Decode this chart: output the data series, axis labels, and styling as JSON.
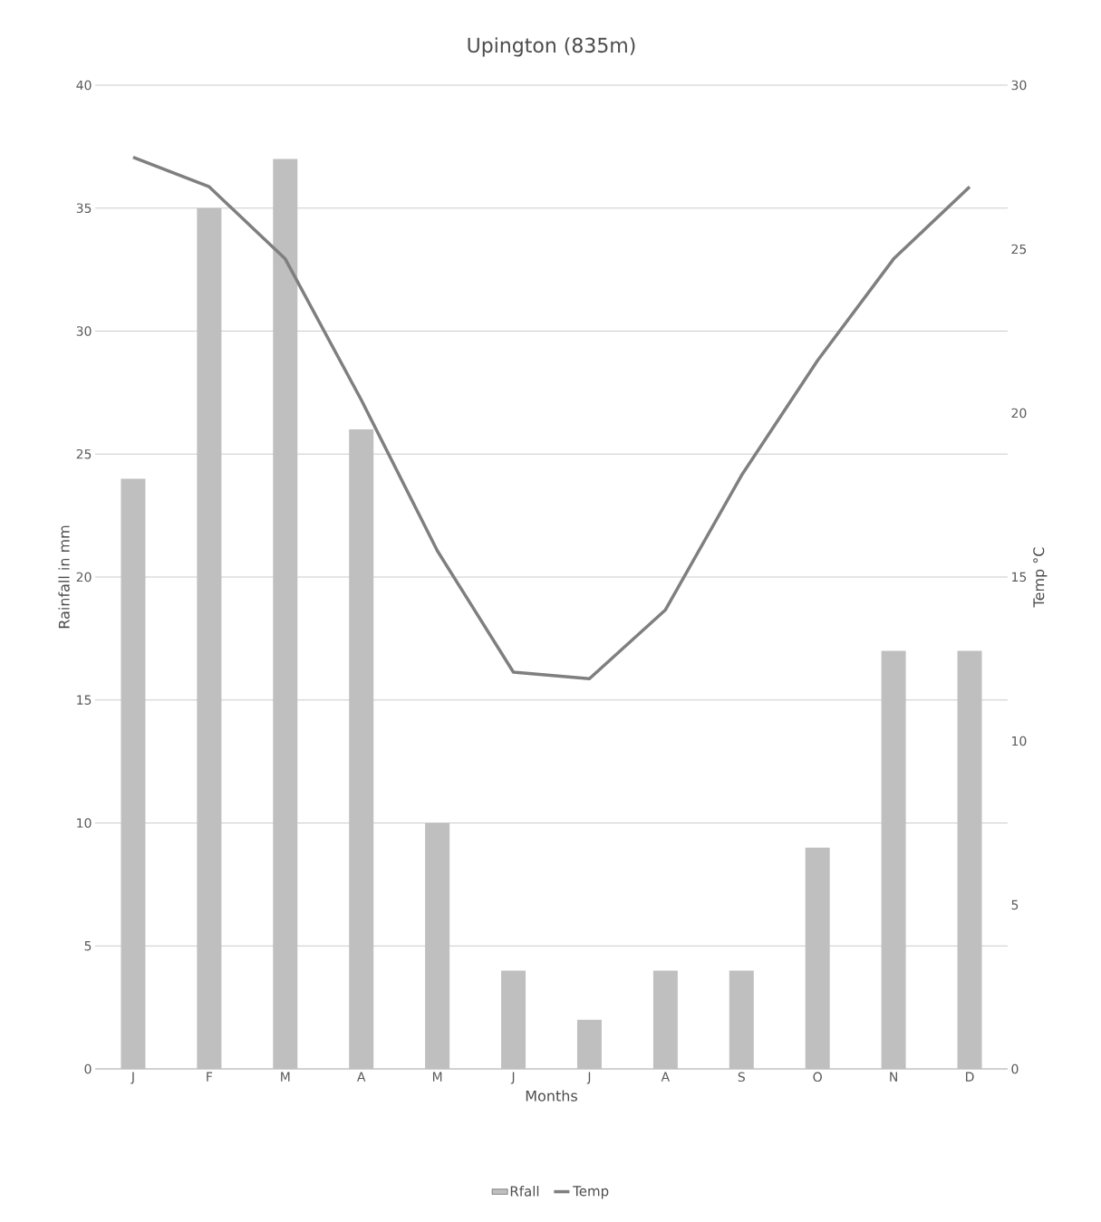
{
  "chart_data": {
    "type": "bar",
    "title": "Upington (835m)",
    "xlabel": "Months",
    "ylabel": "Rainfall in mm",
    "y2label": "Temp °C",
    "categories": [
      "J",
      "F",
      "M",
      "A",
      "M",
      "J",
      "J",
      "A",
      "S",
      "O",
      "N",
      "D"
    ],
    "series": [
      {
        "name": "Rfall",
        "color": "#bfbfbf",
        "values": [
          24,
          35,
          37,
          26,
          10,
          4,
          2,
          4,
          4,
          9,
          17,
          17
        ]
      },
      {
        "name": "Temp",
        "type": "line",
        "axis": "y2",
        "color": "#7f7f7f",
        "values": [
          27.8,
          26.9,
          24.7,
          20.4,
          15.8,
          12.1,
          11.9,
          14.0,
          18.1,
          21.6,
          24.7,
          26.9
        ]
      }
    ],
    "ylim": [
      0,
      40
    ],
    "yticks": [
      0,
      5,
      10,
      15,
      20,
      25,
      30,
      35,
      40
    ],
    "y2lim": [
      0,
      30
    ],
    "y2ticks": [
      0,
      5,
      10,
      15,
      20,
      25,
      30
    ],
    "grid": "y",
    "legend": "bottom"
  }
}
